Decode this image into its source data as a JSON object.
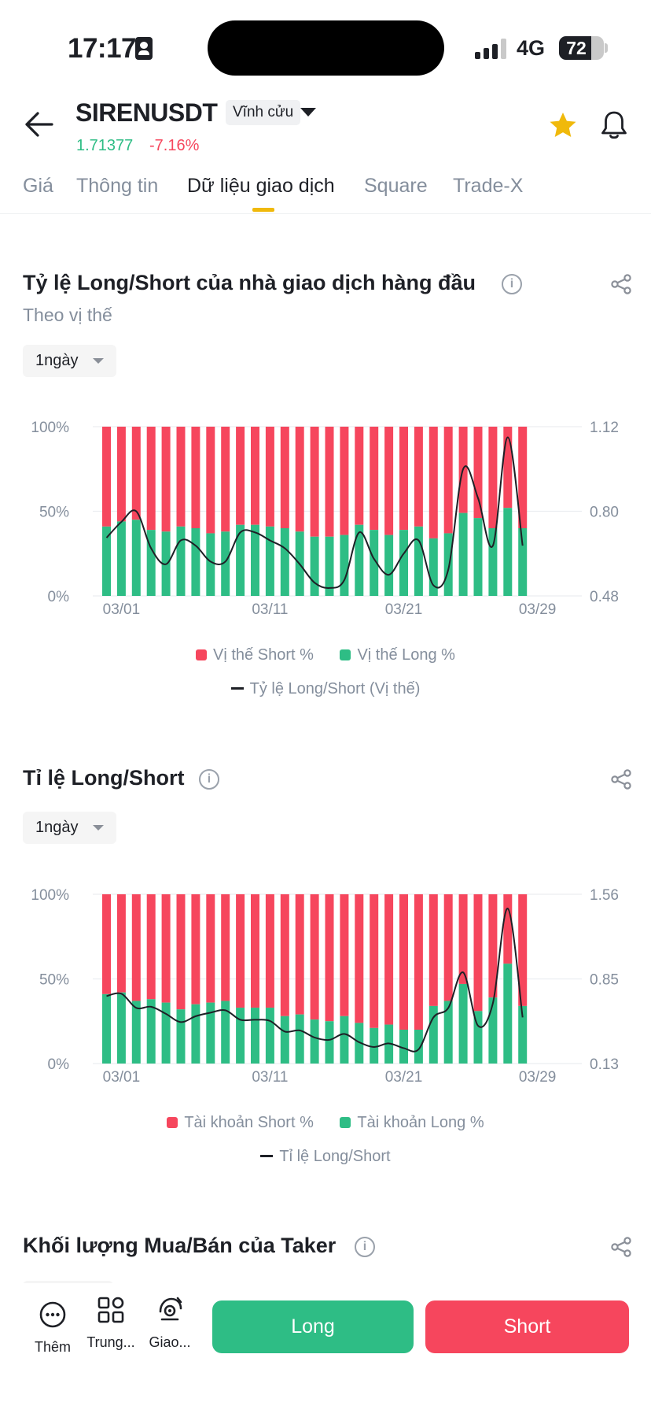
{
  "status_bar": {
    "time": "17:17",
    "network": "4G",
    "battery": "72",
    "battery_level": 0.72
  },
  "header": {
    "symbol": "SIRENUSDT",
    "contract_type": "Vĩnh cửu",
    "price": "1.71377",
    "change": "-7.16%",
    "favorited": true
  },
  "tabs": [
    {
      "label": "Giá",
      "active": false
    },
    {
      "label": "Thông tin",
      "active": false
    },
    {
      "label": "Dữ liệu giao dịch",
      "active": true
    },
    {
      "label": "Square",
      "active": false
    },
    {
      "label": "Trade-X",
      "active": false
    }
  ],
  "sections": [
    {
      "title": "Tỷ lệ Long/Short của nhà giao dịch hàng đầu",
      "subtitle": "Theo vị thế",
      "period": "1ngày"
    },
    {
      "title": "Tỉ lệ Long/Short",
      "period": "1ngày"
    },
    {
      "title": "Khối lượng Mua/Bán của Taker"
    }
  ],
  "colors": {
    "short": "#f6465d",
    "long": "#2ebd85",
    "ratio_line": "#1e2026",
    "accent": "#f0b90b"
  },
  "icons": [
    "back-arrow-icon",
    "dropdown-caret-icon",
    "star-icon",
    "bell-icon",
    "info-icon",
    "share-icon",
    "more-icon",
    "grid-icon",
    "trade-icon"
  ],
  "chart_data": [
    {
      "type": "bar",
      "stacked": true,
      "dual_axis": true,
      "x_ticks": [
        "03/01",
        "03/11",
        "03/21",
        "03/29"
      ],
      "y_left_ticks": [
        "100%",
        "50%",
        "0%"
      ],
      "y_right_ticks": [
        "1.12",
        "0.80",
        "0.48"
      ],
      "y_right_range": [
        0.48,
        1.12
      ],
      "series": [
        {
          "name": "Vị thế Short %",
          "values": [
            59,
            56,
            55,
            61,
            62,
            59,
            60,
            63,
            62,
            58,
            58,
            59,
            60,
            62,
            65,
            65,
            64,
            58,
            61,
            64,
            61,
            59,
            66,
            63,
            51,
            54,
            60,
            48,
            60
          ]
        },
        {
          "name": "Vị thế Long %",
          "values": [
            41,
            44,
            45,
            39,
            38,
            41,
            40,
            37,
            38,
            42,
            42,
            41,
            40,
            38,
            35,
            35,
            36,
            42,
            39,
            36,
            39,
            41,
            34,
            37,
            49,
            46,
            40,
            52,
            40
          ]
        },
        {
          "name": "Tỷ lệ Long/Short (Vị thế)",
          "type": "line",
          "values": [
            0.7,
            0.76,
            0.8,
            0.66,
            0.6,
            0.69,
            0.67,
            0.61,
            0.61,
            0.72,
            0.72,
            0.69,
            0.66,
            0.6,
            0.53,
            0.51,
            0.54,
            0.72,
            0.62,
            0.56,
            0.64,
            0.69,
            0.52,
            0.58,
            0.96,
            0.85,
            0.67,
            1.08,
            0.67
          ]
        }
      ]
    },
    {
      "type": "bar",
      "stacked": true,
      "dual_axis": true,
      "x_ticks": [
        "03/01",
        "03/11",
        "03/21",
        "03/29"
      ],
      "y_left_ticks": [
        "100%",
        "50%",
        "0%"
      ],
      "y_right_ticks": [
        "1.56",
        "0.85",
        "0.13"
      ],
      "y_right_range": [
        0.13,
        1.56
      ],
      "series": [
        {
          "name": "Tài khoản Short %",
          "values": [
            59,
            58,
            63,
            62,
            64,
            68,
            65,
            64,
            63,
            67,
            67,
            67,
            72,
            71,
            74,
            75,
            72,
            76,
            79,
            77,
            80,
            80,
            66,
            63,
            53,
            69,
            61,
            41,
            66
          ]
        },
        {
          "name": "Tài khoản Long %",
          "values": [
            41,
            42,
            37,
            38,
            36,
            32,
            35,
            36,
            37,
            33,
            33,
            33,
            28,
            29,
            26,
            25,
            28,
            24,
            21,
            23,
            20,
            20,
            34,
            37,
            47,
            31,
            39,
            59,
            34
          ]
        },
        {
          "name": "Tỉ lệ Long/Short",
          "type": "line",
          "values": [
            0.7,
            0.72,
            0.6,
            0.61,
            0.55,
            0.48,
            0.53,
            0.56,
            0.58,
            0.5,
            0.5,
            0.49,
            0.4,
            0.41,
            0.35,
            0.33,
            0.38,
            0.31,
            0.27,
            0.3,
            0.26,
            0.25,
            0.52,
            0.6,
            0.9,
            0.45,
            0.64,
            1.44,
            0.52
          ]
        }
      ]
    }
  ],
  "bottom_nav": {
    "items": [
      {
        "label": "Thêm",
        "icon": "more-icon"
      },
      {
        "label": "Trung...",
        "icon": "grid-icon"
      },
      {
        "label": "Giao...",
        "icon": "trade-icon"
      }
    ],
    "long_label": "Long",
    "short_label": "Short"
  }
}
